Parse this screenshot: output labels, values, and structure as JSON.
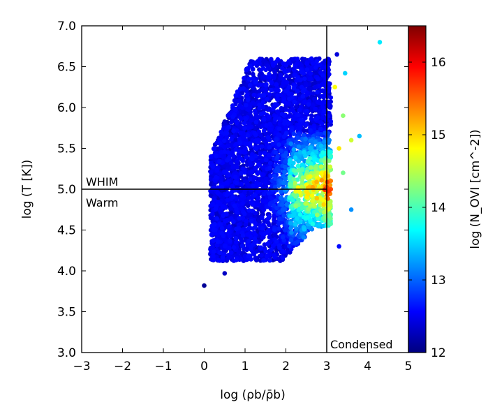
{
  "chart_data": {
    "type": "scatter",
    "xlabel": "log (ρb/ρ̄b)",
    "ylabel": "log (T [K])",
    "xlim": [
      -3,
      5
    ],
    "ylim": [
      3.0,
      7.0
    ],
    "xticks": [
      "−3",
      "−2",
      "−1",
      "0",
      "1",
      "2",
      "3",
      "4",
      "5"
    ],
    "yticks": [
      "3.0",
      "3.5",
      "4.0",
      "4.5",
      "5.0",
      "5.5",
      "6.0",
      "6.5",
      "7.0"
    ],
    "colorbar": {
      "label": "log (N_OVI [cm^-2])",
      "range": [
        12,
        16.5
      ],
      "ticks": [
        "12",
        "13",
        "14",
        "15",
        "16"
      ],
      "colormap": "jet"
    },
    "dividers": {
      "horizontal_y": 5.0,
      "vertical_x": 3.0
    },
    "regions": {
      "whim": "WHIM",
      "warm": "Warm",
      "condensed": "Condensed"
    },
    "grid": false,
    "notable_points": [
      {
        "x": 0.0,
        "y": 3.82,
        "c": 12.1
      },
      {
        "x": 0.5,
        "y": 3.97,
        "c": 12.3
      },
      {
        "x": 3.25,
        "y": 6.65,
        "c": 12.4
      },
      {
        "x": 4.3,
        "y": 6.8,
        "c": 13.6
      },
      {
        "x": 3.6,
        "y": 4.75,
        "c": 13.2
      },
      {
        "x": 3.8,
        "y": 5.65,
        "c": 13.4
      },
      {
        "x": 3.45,
        "y": 6.42,
        "c": 13.5
      },
      {
        "x": 3.3,
        "y": 4.3,
        "c": 12.6
      },
      {
        "x": 3.4,
        "y": 5.9,
        "c": 14.3
      },
      {
        "x": 3.2,
        "y": 6.25,
        "c": 14.8
      },
      {
        "x": 3.6,
        "y": 5.6,
        "c": 14.6
      },
      {
        "x": 3.3,
        "y": 5.5,
        "c": 14.9
      },
      {
        "x": 3.1,
        "y": 5.0,
        "c": 15.6
      },
      {
        "x": 3.4,
        "y": 5.2,
        "c": 14.2
      }
    ]
  }
}
